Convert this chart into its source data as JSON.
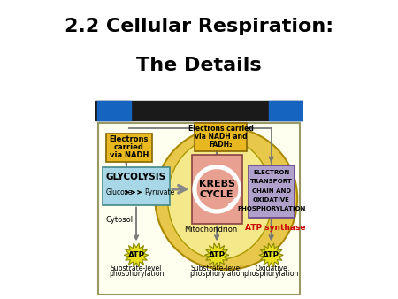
{
  "title_line1": "2.2 Cellular Respiration:",
  "title_line2": "The Details",
  "title_fontsize": 16,
  "bg_color": "#ffffff",
  "diagram_bg": "#fffff0",
  "mito_color": "#e8c84a",
  "mito_inner_color": "#f5e88a",
  "glycolysis_color": "#a8d8e8",
  "krebs_color": "#e8a090",
  "etc_color": "#b0a0cc",
  "electron_box_color": "#e8b820",
  "atp_color": "#e8e020",
  "atp_synthase_color": "#cc0000",
  "cytosol_label": "Cytosol",
  "mito_label": "Mitochondrion",
  "atp_synthase_label": "ATP synthase",
  "glycolysis_label": "GLYCOLYSIS",
  "glucose_label": "Glucose",
  "pyruvate_label": "Pyruvate",
  "krebs_label1": "KREBS",
  "krebs_label2": "CYCLE",
  "etc_label1": "ELECTRON",
  "etc_label2": "TRANSPORT",
  "etc_label3": "CHAIN AND",
  "etc_label4": "OXIDATIVE",
  "etc_label5": "PHOSPHORYLATION",
  "nadh_label1": "Electrons",
  "nadh_label2": "carried",
  "nadh_label3": "via NADH",
  "nadh2_label1": "Electrons carried",
  "nadh2_label2": "via NADH and",
  "nadh2_label3": "FADH₂",
  "sub_level1": "Substrate-level",
  "sub_level2": "phosphorylation",
  "oxidative1": "Oxidative",
  "oxidative2": "phosphorylation",
  "atp_label": "ATP",
  "stripe_black": "#1a1a1a",
  "stripe_blue": "#1565c0"
}
